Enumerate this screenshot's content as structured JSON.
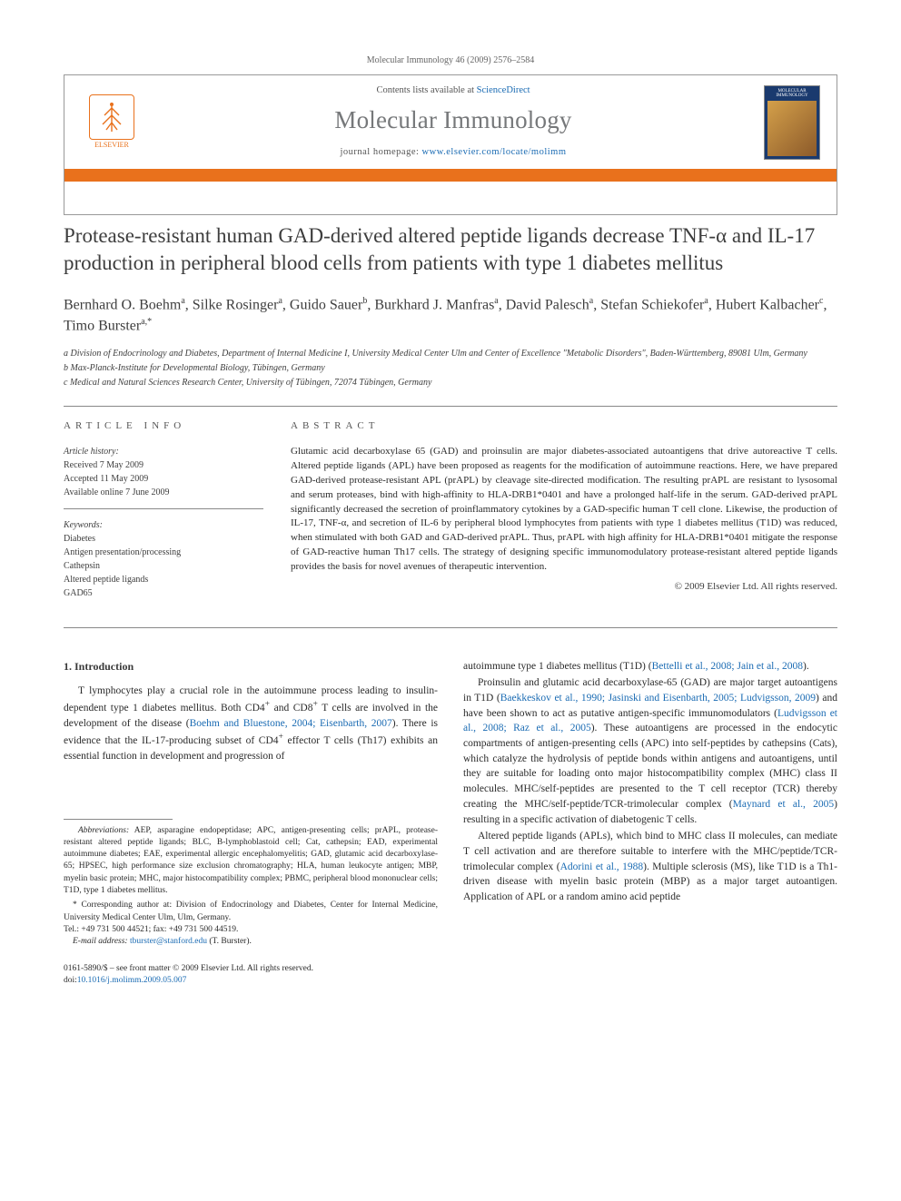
{
  "header": {
    "journal_ref": "Molecular Immunology 46 (2009) 2576–2584",
    "contents_prefix": "Contents lists available at ",
    "contents_link": "ScienceDirect",
    "journal_name": "Molecular Immunology",
    "homepage_prefix": "journal homepage: ",
    "homepage_link": "www.elsevier.com/locate/molimm",
    "elsevier_label": "ELSEVIER",
    "cover_label": "MOLECULAR IMMUNOLOGY"
  },
  "colors": {
    "orange": "#e9711c",
    "link": "#1a6bb3",
    "journal_name": "#76787a"
  },
  "article": {
    "title": "Protease-resistant human GAD-derived altered peptide ligands decrease TNF-α and IL-17 production in peripheral blood cells from patients with type 1 diabetes mellitus",
    "authors_html": "Bernhard O. Boehm<sup>a</sup>, Silke Rosinger<sup>a</sup>, Guido Sauer<sup>b</sup>, Burkhard J. Manfras<sup>a</sup>, David Palesch<sup>a</sup>, Stefan Schiekofer<sup>a</sup>, Hubert Kalbacher<sup>c</sup>, Timo Burster<sup>a,*</sup>",
    "affiliations": [
      "a Division of Endocrinology and Diabetes, Department of Internal Medicine I, University Medical Center Ulm and Center of Excellence \"Metabolic Disorders\", Baden-Württemberg, 89081 Ulm, Germany",
      "b Max-Planck-Institute for Developmental Biology, Tübingen, Germany",
      "c Medical and Natural Sciences Research Center, University of Tübingen, 72074 Tübingen, Germany"
    ]
  },
  "info": {
    "heading": "ARTICLE INFO",
    "history_label": "Article history:",
    "history": [
      "Received 7 May 2009",
      "Accepted 11 May 2009",
      "Available online 7 June 2009"
    ],
    "keywords_label": "Keywords:",
    "keywords": [
      "Diabetes",
      "Antigen presentation/processing",
      "Cathepsin",
      "Altered peptide ligands",
      "GAD65"
    ]
  },
  "abstract": {
    "heading": "ABSTRACT",
    "text": "Glutamic acid decarboxylase 65 (GAD) and proinsulin are major diabetes-associated autoantigens that drive autoreactive T cells. Altered peptide ligands (APL) have been proposed as reagents for the modification of autoimmune reactions. Here, we have prepared GAD-derived protease-resistant APL (prAPL) by cleavage site-directed modification. The resulting prAPL are resistant to lysosomal and serum proteases, bind with high-affinity to HLA-DRB1*0401 and have a prolonged half-life in the serum. GAD-derived prAPL significantly decreased the secretion of proinflammatory cytokines by a GAD-specific human T cell clone. Likewise, the production of IL-17, TNF-α, and secretion of IL-6 by peripheral blood lymphocytes from patients with type 1 diabetes mellitus (T1D) was reduced, when stimulated with both GAD and GAD-derived prAPL. Thus, prAPL with high affinity for HLA-DRB1*0401 mitigate the response of GAD-reactive human Th17 cells. The strategy of designing specific immunomodulatory protease-resistant altered peptide ligands provides the basis for novel avenues of therapeutic intervention.",
    "copyright": "© 2009 Elsevier Ltd. All rights reserved."
  },
  "body": {
    "section_heading": "1. Introduction",
    "left": {
      "p1_pre": "T lymphocytes play a crucial role in the autoimmune process leading to insulin-dependent type 1 diabetes mellitus. Both CD4",
      "p1_sup1": "+",
      "p1_mid": " and CD8",
      "p1_sup2": "+",
      "p1_post1": " T cells are involved in the development of the disease (",
      "p1_cite": "Boehm and Bluestone, 2004; Eisenbarth, 2007",
      "p1_post2": "). There is evidence that the IL-17-producing subset of CD4",
      "p1_sup3": "+",
      "p1_tail": " effector T cells (Th17) exhibits an essential function in development and progression of"
    },
    "right": {
      "p1_pre": "autoimmune type 1 diabetes mellitus (T1D) (",
      "p1_cite": "Bettelli et al., 2008; Jain et al., 2008",
      "p1_post": ").",
      "p2_pre": "Proinsulin and glutamic acid decarboxylase-65 (GAD) are major target autoantigens in T1D (",
      "p2_cite1": "Baekkeskov et al., 1990; Jasinski and Eisenbarth, 2005; Ludvigsson, 2009",
      "p2_mid1": ") and have been shown to act as putative antigen-specific immunomodulators (",
      "p2_cite2": "Ludvigsson et al., 2008; Raz et al., 2005",
      "p2_mid2": "). These autoantigens are processed in the endocytic compartments of antigen-presenting cells (APC) into self-peptides by cathepsins (Cats), which catalyze the hydrolysis of peptide bonds within antigens and autoantigens, until they are suitable for loading onto major histocompatibility complex (MHC) class II molecules. MHC/self-peptides are presented to the T cell receptor (TCR) thereby creating the MHC/self-peptide/TCR-trimolecular complex (",
      "p2_cite3": "Maynard et al., 2005",
      "p2_tail": ") resulting in a specific activation of diabetogenic T cells.",
      "p3_pre": "Altered peptide ligands (APLs), which bind to MHC class II molecules, can mediate T cell activation and are therefore suitable to interfere with the MHC/peptide/TCR-trimolecular complex (",
      "p3_cite": "Adorini et al., 1988",
      "p3_tail": "). Multiple sclerosis (MS), like T1D is a Th1-driven disease with myelin basic protein (MBP) as a major target autoantigen. Application of APL or a random amino acid peptide"
    }
  },
  "footnotes": {
    "abbrev_label": "Abbreviations:",
    "abbrev_text": " AEP, asparagine endopeptidase; APC, antigen-presenting cells; prAPL, protease-resistant altered peptide ligands; BLC, B-lymphoblastoid cell; Cat, cathepsin; EAD, experimental autoimmune diabetes; EAE, experimental allergic encephalomyelitis; GAD, glutamic acid decarboxylase-65; HPSEC, high performance size exclusion chromatography; HLA, human leukocyte antigen; MBP, myelin basic protein; MHC, major histocompatibility complex; PBMC, peripheral blood mononuclear cells; T1D, type 1 diabetes mellitus.",
    "corresponding": "* Corresponding author at: Division of Endocrinology and Diabetes, Center for Internal Medicine, University Medical Center Ulm, Ulm, Germany.",
    "tel": "Tel.: +49 731 500 44521; fax: +49 731 500 44519.",
    "email_label": "E-mail address: ",
    "email": "tburster@stanford.edu",
    "email_suffix": " (T. Burster)."
  },
  "footer": {
    "line1": "0161-5890/$ – see front matter © 2009 Elsevier Ltd. All rights reserved.",
    "doi_label": "doi:",
    "doi": "10.1016/j.molimm.2009.05.007"
  }
}
